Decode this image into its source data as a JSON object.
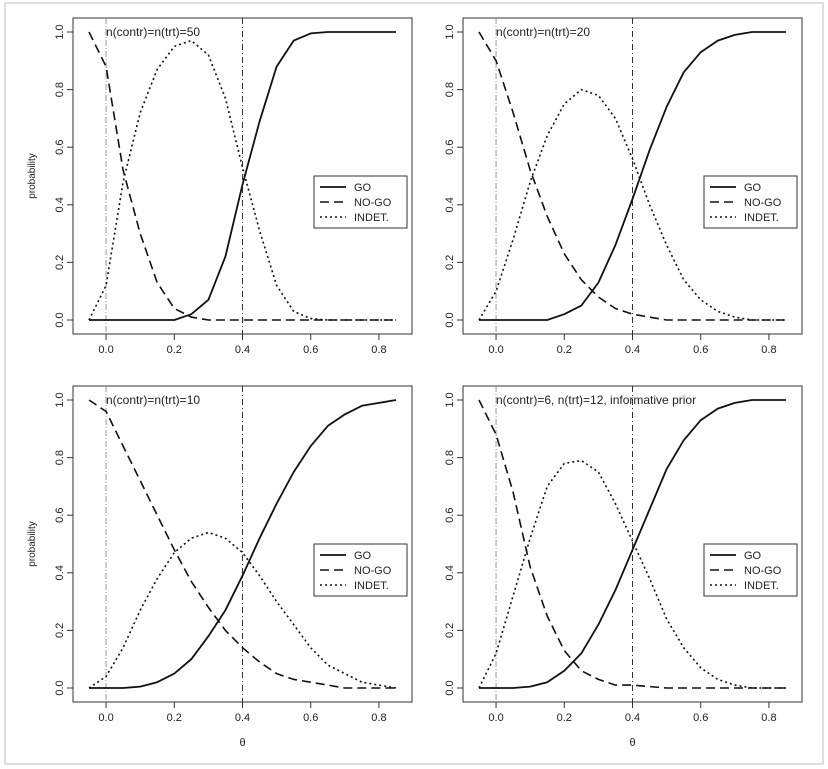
{
  "figure": {
    "shared_xlabel": "θ",
    "shared_ylabel": "probability"
  },
  "chart_data": [
    {
      "type": "line",
      "title": "n(contr)=n(trt)=50",
      "xlabel": "",
      "ylabel": "probability",
      "xlim": [
        -0.05,
        0.85
      ],
      "ylim": [
        0,
        1
      ],
      "xticks": [
        "0.0",
        "0.2",
        "0.4",
        "0.6",
        "0.8"
      ],
      "yticks": [
        "0.0",
        "0.2",
        "0.4",
        "0.6",
        "0.8",
        "1.0"
      ],
      "vlines": [
        0.0,
        0.4
      ],
      "legend": {
        "position": "right",
        "entries": [
          "GO",
          "NO-GO",
          "INDET."
        ]
      },
      "x": [
        -0.05,
        0.0,
        0.05,
        0.1,
        0.15,
        0.2,
        0.25,
        0.3,
        0.35,
        0.4,
        0.45,
        0.5,
        0.55,
        0.6,
        0.65,
        0.7,
        0.75,
        0.8,
        0.85
      ],
      "series": [
        {
          "name": "GO",
          "style": "solid",
          "values": [
            0,
            0,
            0,
            0,
            0,
            0,
            0.02,
            0.07,
            0.22,
            0.47,
            0.69,
            0.88,
            0.97,
            0.995,
            1,
            1,
            1,
            1,
            1
          ]
        },
        {
          "name": "NO-GO",
          "style": "dashed",
          "values": [
            1.0,
            0.88,
            0.52,
            0.3,
            0.13,
            0.04,
            0.01,
            0,
            0,
            0,
            0,
            0,
            0,
            0,
            0,
            0,
            0,
            0,
            0
          ]
        },
        {
          "name": "INDET.",
          "style": "dotted",
          "values": [
            0,
            0.12,
            0.48,
            0.72,
            0.87,
            0.95,
            0.97,
            0.92,
            0.77,
            0.53,
            0.31,
            0.12,
            0.03,
            0.005,
            0,
            0,
            0,
            0,
            0
          ]
        }
      ]
    },
    {
      "type": "line",
      "title": "n(contr)=n(trt)=20",
      "xlabel": "",
      "ylabel": "",
      "xlim": [
        -0.05,
        0.85
      ],
      "ylim": [
        0,
        1
      ],
      "xticks": [
        "0.0",
        "0.2",
        "0.4",
        "0.6",
        "0.8"
      ],
      "yticks": [
        "0.0",
        "0.2",
        "0.4",
        "0.6",
        "0.8",
        "1.0"
      ],
      "vlines": [
        0.0,
        0.4
      ],
      "legend": {
        "position": "right",
        "entries": [
          "GO",
          "NO-GO",
          "INDET."
        ]
      },
      "x": [
        -0.05,
        0.0,
        0.05,
        0.1,
        0.15,
        0.2,
        0.25,
        0.3,
        0.35,
        0.4,
        0.45,
        0.5,
        0.55,
        0.6,
        0.65,
        0.7,
        0.75,
        0.8,
        0.85
      ],
      "series": [
        {
          "name": "GO",
          "style": "solid",
          "values": [
            0,
            0,
            0,
            0,
            0,
            0.02,
            0.05,
            0.13,
            0.26,
            0.42,
            0.59,
            0.74,
            0.86,
            0.93,
            0.97,
            0.99,
            1,
            1,
            1
          ]
        },
        {
          "name": "NO-GO",
          "style": "dashed",
          "values": [
            1.0,
            0.9,
            0.72,
            0.52,
            0.36,
            0.23,
            0.14,
            0.08,
            0.04,
            0.02,
            0.01,
            0,
            0,
            0,
            0,
            0,
            0,
            0,
            0
          ]
        },
        {
          "name": "INDET.",
          "style": "dotted",
          "values": [
            0,
            0.1,
            0.28,
            0.48,
            0.64,
            0.75,
            0.8,
            0.78,
            0.7,
            0.56,
            0.4,
            0.26,
            0.14,
            0.07,
            0.03,
            0.01,
            0,
            0,
            0
          ]
        }
      ]
    },
    {
      "type": "line",
      "title": "n(contr)=n(trt)=10",
      "xlabel": "θ",
      "ylabel": "probability",
      "xlim": [
        -0.05,
        0.85
      ],
      "ylim": [
        0,
        1
      ],
      "xticks": [
        "0.0",
        "0.2",
        "0.4",
        "0.6",
        "0.8"
      ],
      "yticks": [
        "0.0",
        "0.2",
        "0.4",
        "0.6",
        "0.8",
        "1.0"
      ],
      "vlines": [
        0.0,
        0.4
      ],
      "legend": {
        "position": "right",
        "entries": [
          "GO",
          "NO-GO",
          "INDET."
        ]
      },
      "x": [
        -0.05,
        0.0,
        0.05,
        0.1,
        0.15,
        0.2,
        0.25,
        0.3,
        0.35,
        0.4,
        0.45,
        0.5,
        0.55,
        0.6,
        0.65,
        0.7,
        0.75,
        0.8,
        0.85
      ],
      "series": [
        {
          "name": "GO",
          "style": "solid",
          "values": [
            0,
            0,
            0,
            0.005,
            0.02,
            0.05,
            0.1,
            0.18,
            0.27,
            0.39,
            0.52,
            0.64,
            0.75,
            0.84,
            0.91,
            0.95,
            0.98,
            0.99,
            1
          ]
        },
        {
          "name": "NO-GO",
          "style": "dashed",
          "values": [
            1.0,
            0.96,
            0.84,
            0.72,
            0.6,
            0.48,
            0.37,
            0.28,
            0.2,
            0.14,
            0.09,
            0.05,
            0.03,
            0.02,
            0.01,
            0,
            0,
            0,
            0
          ]
        },
        {
          "name": "INDET.",
          "style": "dotted",
          "values": [
            0,
            0.04,
            0.14,
            0.27,
            0.38,
            0.47,
            0.52,
            0.54,
            0.52,
            0.47,
            0.39,
            0.3,
            0.22,
            0.14,
            0.08,
            0.05,
            0.02,
            0.01,
            0
          ]
        }
      ]
    },
    {
      "type": "line",
      "title": "n(contr)=6, n(trt)=12, informative prior",
      "xlabel": "θ",
      "ylabel": "",
      "xlim": [
        -0.05,
        0.85
      ],
      "ylim": [
        0,
        1
      ],
      "xticks": [
        "0.0",
        "0.2",
        "0.4",
        "0.6",
        "0.8"
      ],
      "yticks": [
        "0.0",
        "0.2",
        "0.4",
        "0.6",
        "0.8",
        "1.0"
      ],
      "vlines": [
        0.0,
        0.4
      ],
      "legend": {
        "position": "right",
        "entries": [
          "GO",
          "NO-GO",
          "INDET."
        ]
      },
      "x": [
        -0.05,
        0.0,
        0.05,
        0.1,
        0.15,
        0.2,
        0.25,
        0.3,
        0.35,
        0.4,
        0.45,
        0.5,
        0.55,
        0.6,
        0.65,
        0.7,
        0.75,
        0.8,
        0.85
      ],
      "series": [
        {
          "name": "GO",
          "style": "solid",
          "values": [
            0,
            0,
            0,
            0.005,
            0.02,
            0.06,
            0.12,
            0.22,
            0.34,
            0.48,
            0.62,
            0.76,
            0.86,
            0.93,
            0.97,
            0.99,
            1,
            1,
            1
          ]
        },
        {
          "name": "NO-GO",
          "style": "dashed",
          "values": [
            1.0,
            0.88,
            0.68,
            0.42,
            0.25,
            0.13,
            0.06,
            0.03,
            0.01,
            0.01,
            0.005,
            0,
            0,
            0,
            0,
            0,
            0,
            0,
            0
          ]
        },
        {
          "name": "INDET.",
          "style": "dotted",
          "values": [
            0,
            0.12,
            0.32,
            0.52,
            0.7,
            0.78,
            0.79,
            0.75,
            0.64,
            0.51,
            0.38,
            0.24,
            0.14,
            0.07,
            0.03,
            0.01,
            0,
            0,
            0
          ]
        }
      ]
    }
  ]
}
